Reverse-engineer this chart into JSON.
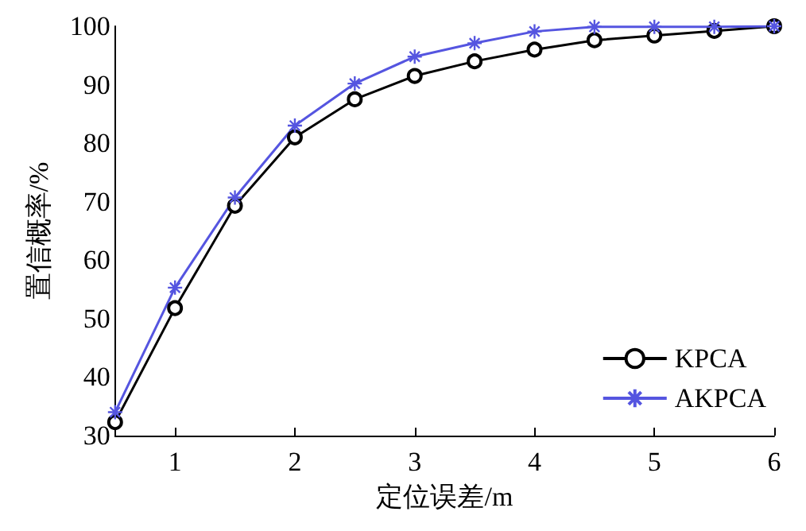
{
  "chart_data": {
    "type": "line",
    "xlabel": "定位误差/m",
    "ylabel": "置信概率/%",
    "x": [
      0.5,
      1,
      1.5,
      2,
      2.5,
      3,
      3.5,
      4,
      4.5,
      5,
      5.5,
      6
    ],
    "series": [
      {
        "name": "KPCA",
        "color": "#000000",
        "marker": "circle",
        "values": [
          32.3,
          51.8,
          69.3,
          81.0,
          87.5,
          91.5,
          94.0,
          96.0,
          97.6,
          98.4,
          99.2,
          100
        ]
      },
      {
        "name": "AKPCA",
        "color": "#5555e0",
        "marker": "cross",
        "values": [
          34.0,
          55.3,
          70.7,
          83.0,
          90.2,
          94.8,
          97.1,
          99.1,
          99.9,
          99.9,
          99.9,
          100
        ]
      }
    ],
    "xlim": [
      0.5,
      6
    ],
    "xticks": [
      1,
      2,
      3,
      4,
      5,
      6
    ],
    "ylim": [
      30,
      100
    ],
    "yticks": [
      30,
      40,
      50,
      60,
      70,
      80,
      90,
      100
    ],
    "grid": false,
    "legend": "bottom right",
    "line_style": "solid"
  }
}
